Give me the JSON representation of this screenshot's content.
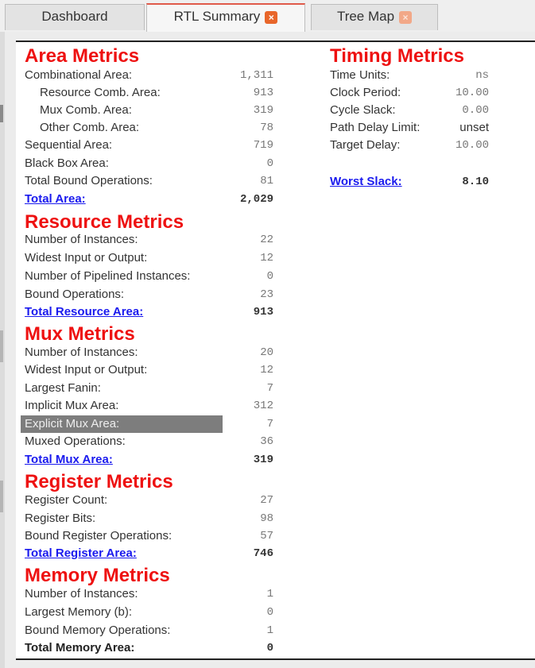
{
  "tabs": [
    {
      "label": "Dashboard"
    },
    {
      "label": "RTL Summary",
      "close": "×"
    },
    {
      "label": "Tree Map",
      "close": "×"
    }
  ],
  "area": {
    "title": "Area Metrics",
    "rows": [
      {
        "label": "Combinational Area:",
        "value": "1,311"
      },
      {
        "label": "Resource Comb. Area:",
        "value": "913"
      },
      {
        "label": "Mux Comb. Area:",
        "value": "319"
      },
      {
        "label": "Other Comb. Area:",
        "value": "78"
      },
      {
        "label": "Sequential Area:",
        "value": "719"
      },
      {
        "label": "Black Box Area:",
        "value": "0"
      },
      {
        "label": "Total Bound Operations:",
        "value": "81"
      }
    ],
    "total": {
      "label": "Total Area:",
      "value": "2,029"
    }
  },
  "resource": {
    "title": "Resource Metrics",
    "rows": [
      {
        "label": "Number of Instances:",
        "value": "22"
      },
      {
        "label": "Widest Input or Output:",
        "value": "12"
      },
      {
        "label": "Number of Pipelined Instances:",
        "value": "0"
      },
      {
        "label": "Bound Operations:",
        "value": "23"
      }
    ],
    "total": {
      "label": "Total Resource Area:",
      "value": "913"
    }
  },
  "mux": {
    "title": "Mux Metrics",
    "rows": [
      {
        "label": "Number of Instances:",
        "value": "20"
      },
      {
        "label": "Widest Input or Output:",
        "value": "12"
      },
      {
        "label": "Largest Fanin:",
        "value": "7"
      },
      {
        "label": "Implicit Mux Area:",
        "value": "312"
      },
      {
        "label": "Explicit Mux Area:",
        "value": "7"
      },
      {
        "label": "Muxed Operations:",
        "value": "36"
      }
    ],
    "total": {
      "label": "Total Mux Area:",
      "value": "319"
    }
  },
  "register": {
    "title": "Register Metrics",
    "rows": [
      {
        "label": "Register Count:",
        "value": "27"
      },
      {
        "label": "Register Bits:",
        "value": "98"
      },
      {
        "label": "Bound Register Operations:",
        "value": "57"
      }
    ],
    "total": {
      "label": "Total Register Area:",
      "value": "746"
    }
  },
  "memory": {
    "title": "Memory Metrics",
    "rows": [
      {
        "label": "Number of Instances:",
        "value": "1"
      },
      {
        "label": "Largest Memory (b):",
        "value": "0"
      },
      {
        "label": "Bound Memory Operations:",
        "value": "1"
      }
    ],
    "total": {
      "label": "Total Memory Area:",
      "value": "0"
    }
  },
  "timing": {
    "title": "Timing Metrics",
    "rows": [
      {
        "label": "Time Units:",
        "value": "ns"
      },
      {
        "label": "Clock Period:",
        "value": "10.00"
      },
      {
        "label": "Cycle Slack:",
        "value": "0.00"
      },
      {
        "label": "Path Delay Limit:",
        "value": "unset"
      },
      {
        "label": "Target Delay:",
        "value": "10.00"
      }
    ],
    "total": {
      "label": "Worst Slack:",
      "value": "8.10"
    }
  }
}
